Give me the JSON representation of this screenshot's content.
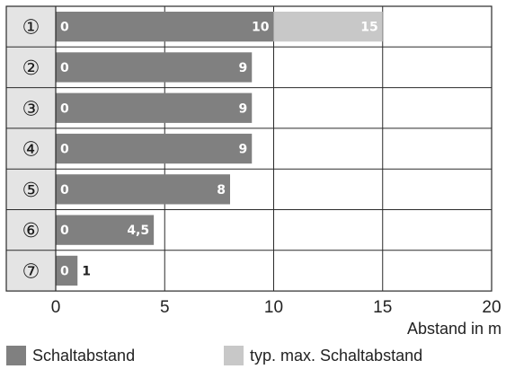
{
  "colors": {
    "schaltabstand": "#808080",
    "max_schaltabstand": "#c8c8c8",
    "label_column": "#e4e4e4",
    "grid": "#2a2a2a"
  },
  "chart_data": {
    "type": "bar",
    "orientation": "horizontal",
    "categories": [
      "①",
      "②",
      "③",
      "④",
      "⑤",
      "⑥",
      "⑦"
    ],
    "series": [
      {
        "name": "Schaltabstand",
        "values": [
          10,
          9,
          9,
          9,
          8,
          4.5,
          1
        ]
      },
      {
        "name": "typ. max. Schaltabstand",
        "values": [
          15,
          null,
          null,
          null,
          null,
          null,
          null
        ]
      }
    ],
    "value_labels": {
      "start": "0",
      "end": [
        "10",
        "9",
        "9",
        "9",
        "8",
        "4,5",
        "1"
      ],
      "max_end": [
        "15",
        "",
        "",
        "",
        "",
        "",
        ""
      ]
    },
    "xlabel": "Abstand in m",
    "ylabel": "",
    "xlim": [
      0,
      20
    ],
    "xticks": [
      0,
      5,
      10,
      15,
      20
    ],
    "xtick_labels": [
      "0",
      "5",
      "10",
      "15",
      "20"
    ],
    "grid": true,
    "legend_position": "bottom"
  }
}
